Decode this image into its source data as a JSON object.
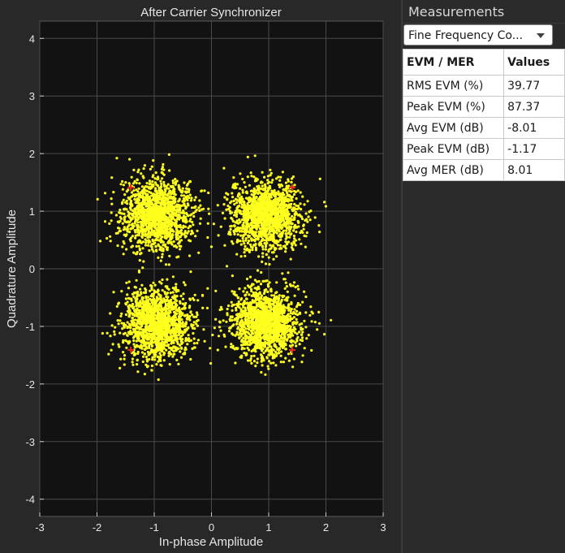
{
  "plot": {
    "title": "After Carrier Synchronizer",
    "xlabel": "In-phase Amplitude",
    "ylabel": "Quadrature Amplitude"
  },
  "colors": {
    "background": "#282828",
    "plot_area": "#121212",
    "grid": "#4a4a4a",
    "points": "#ffff1e",
    "reference": "#e22b1a"
  },
  "chart_data": {
    "type": "scatter",
    "title": "After Carrier Synchronizer",
    "xlabel": "In-phase Amplitude",
    "ylabel": "Quadrature Amplitude",
    "xlim": [
      -3,
      3
    ],
    "ylim": [
      -4.3,
      4.3
    ],
    "xticks": [
      -3,
      -2,
      -1,
      0,
      1,
      2,
      3
    ],
    "yticks": [
      -4,
      -3,
      -2,
      -1,
      0,
      1,
      2,
      3,
      4
    ],
    "grid": true,
    "series": [
      {
        "kind": "received",
        "clusters": [
          {
            "center": [
              -0.95,
              0.95
            ],
            "std": 0.3
          },
          {
            "center": [
              0.95,
              0.95
            ],
            "std": 0.3
          },
          {
            "center": [
              -0.95,
              -0.95
            ],
            "std": 0.3
          },
          {
            "center": [
              0.95,
              -0.95
            ],
            "std": 0.3
          }
        ],
        "approx_points_per_cluster": 1500
      },
      {
        "kind": "reference",
        "points": [
          [
            -1.41,
            1.41
          ],
          [
            1.41,
            1.41
          ],
          [
            -1.41,
            -1.41
          ],
          [
            1.41,
            -1.41
          ]
        ]
      }
    ]
  },
  "measurements": {
    "title": "Measurements",
    "dropdown_value": "Fine Frequency Co...",
    "columns": [
      "EVM / MER",
      "Values"
    ],
    "rows": [
      {
        "label": "RMS EVM (%)",
        "value": "39.77"
      },
      {
        "label": "Peak EVM (%)",
        "value": "87.37"
      },
      {
        "label": "Avg EVM (dB)",
        "value": "-8.01"
      },
      {
        "label": "Peak EVM (dB)",
        "value": "-1.17"
      },
      {
        "label": "Avg MER (dB)",
        "value": "8.01"
      }
    ]
  }
}
